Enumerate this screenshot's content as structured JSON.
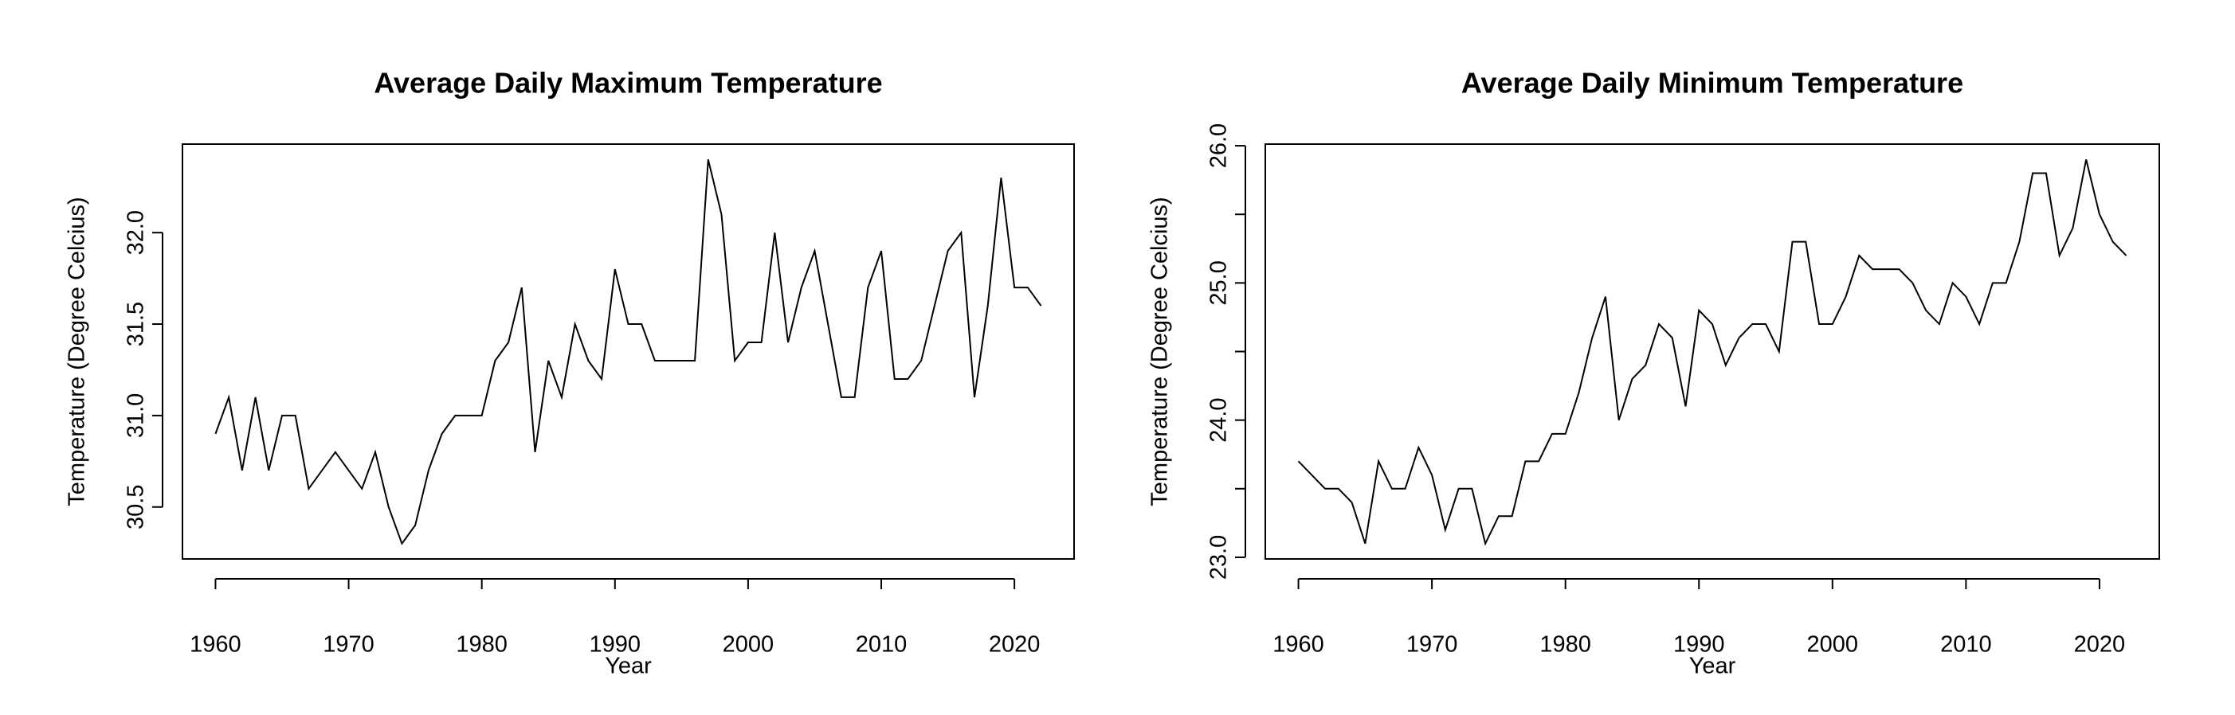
{
  "chart_data": [
    {
      "type": "line",
      "title": "Average Daily Maximum Temperature",
      "x_label": "Year",
      "y_label": "Temperature (Degree Celcius)",
      "x": [
        1960,
        1961,
        1962,
        1963,
        1964,
        1965,
        1966,
        1967,
        1968,
        1969,
        1970,
        1971,
        1972,
        1973,
        1974,
        1975,
        1976,
        1977,
        1978,
        1979,
        1980,
        1981,
        1982,
        1983,
        1984,
        1985,
        1986,
        1987,
        1988,
        1989,
        1990,
        1991,
        1992,
        1993,
        1994,
        1995,
        1996,
        1997,
        1998,
        1999,
        2000,
        2001,
        2002,
        2003,
        2004,
        2005,
        2006,
        2007,
        2008,
        2009,
        2010,
        2011,
        2012,
        2013,
        2014,
        2015,
        2016,
        2017,
        2018,
        2019,
        2020,
        2021,
        2022
      ],
      "series": [
        {
          "color": "#000000",
          "values": [
            30.9,
            31.1,
            30.7,
            31.1,
            30.7,
            31.0,
            31.0,
            30.6,
            30.7,
            30.8,
            30.7,
            30.6,
            30.8,
            30.5,
            30.3,
            30.4,
            30.7,
            30.9,
            31.0,
            31.0,
            31.0,
            31.3,
            31.4,
            31.7,
            30.8,
            31.3,
            31.1,
            31.5,
            31.3,
            31.2,
            31.8,
            31.5,
            31.5,
            31.3,
            31.3,
            31.3,
            31.3,
            32.4,
            32.1,
            31.3,
            31.4,
            31.4,
            32.0,
            31.4,
            31.7,
            31.9,
            31.5,
            31.1,
            31.1,
            31.7,
            31.9,
            31.2,
            31.2,
            31.3,
            31.6,
            31.9,
            32.0,
            31.1,
            31.6,
            32.3,
            31.7,
            31.7,
            31.6
          ]
        }
      ],
      "xlim": [
        1957.52,
        2024.48
      ],
      "xticks": [
        1960,
        1970,
        1980,
        1990,
        2000,
        2010,
        2020
      ],
      "ylim": [
        30.216,
        32.484
      ],
      "yticks": [
        30.5,
        {
          "value": 31,
          "label": "31.0"
        },
        31.5,
        {
          "value": 32,
          "label": "32.0"
        }
      ]
    },
    {
      "type": "line",
      "title": "Average Daily Minimum Temperature",
      "x_label": "Year",
      "y_label": "Temperature (Degree Celcius)",
      "x": [
        1960,
        1961,
        1962,
        1963,
        1964,
        1965,
        1966,
        1967,
        1968,
        1969,
        1970,
        1971,
        1972,
        1973,
        1974,
        1975,
        1976,
        1977,
        1978,
        1979,
        1980,
        1981,
        1982,
        1983,
        1984,
        1985,
        1986,
        1987,
        1988,
        1989,
        1990,
        1991,
        1992,
        1993,
        1994,
        1995,
        1996,
        1997,
        1998,
        1999,
        2000,
        2001,
        2002,
        2003,
        2004,
        2005,
        2006,
        2007,
        2008,
        2009,
        2010,
        2011,
        2012,
        2013,
        2014,
        2015,
        2016,
        2017,
        2018,
        2019,
        2020,
        2021,
        2022
      ],
      "series": [
        {
          "color": "#000000",
          "values": [
            23.7,
            23.6,
            23.5,
            23.5,
            23.4,
            23.1,
            23.7,
            23.5,
            23.5,
            23.8,
            23.6,
            23.2,
            23.5,
            23.5,
            23.1,
            23.3,
            23.3,
            23.7,
            23.7,
            23.9,
            23.9,
            24.2,
            24.6,
            24.9,
            24.0,
            24.3,
            24.4,
            24.7,
            24.6,
            24.1,
            24.8,
            24.7,
            24.4,
            24.6,
            24.7,
            24.7,
            24.5,
            25.3,
            25.3,
            24.7,
            24.7,
            24.9,
            25.2,
            25.1,
            25.1,
            25.1,
            25.0,
            24.8,
            24.7,
            25.0,
            24.9,
            24.7,
            25.0,
            25.0,
            25.3,
            25.8,
            25.8,
            25.2,
            25.4,
            25.9,
            25.5,
            25.3,
            25.2
          ]
        }
      ],
      "xlim": [
        1957.52,
        2024.48
      ],
      "xticks": [
        1960,
        1970,
        1980,
        1990,
        2000,
        2010,
        2020
      ],
      "ylim": [
        22.988,
        26.012
      ],
      "yticks": [
        {
          "value": 23,
          "label": "23.0"
        },
        {
          "value": 24,
          "label": "24.0"
        },
        {
          "value": 25,
          "label": "25.0"
        },
        {
          "value": 26,
          "label": "26.0"
        }
      ],
      "yminor_ticks": [
        23.5,
        24.5,
        25.5
      ]
    }
  ]
}
